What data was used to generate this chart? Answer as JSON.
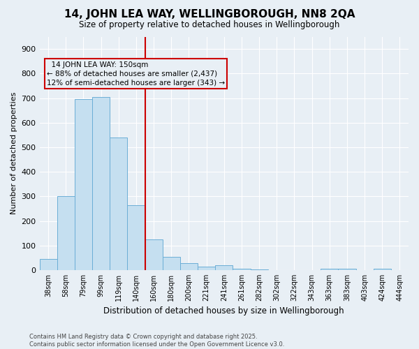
{
  "title": "14, JOHN LEA WAY, WELLINGBOROUGH, NN8 2QA",
  "subtitle": "Size of property relative to detached houses in Wellingborough",
  "xlabel": "Distribution of detached houses by size in Wellingborough",
  "ylabel": "Number of detached properties",
  "footer": "Contains HM Land Registry data © Crown copyright and database right 2025.\nContains public sector information licensed under the Open Government Licence v3.0.",
  "bar_color": "#C5DFF0",
  "bar_edge_color": "#6BAED6",
  "categories": [
    "38sqm",
    "58sqm",
    "79sqm",
    "99sqm",
    "119sqm",
    "140sqm",
    "160sqm",
    "180sqm",
    "200sqm",
    "221sqm",
    "241sqm",
    "261sqm",
    "282sqm",
    "302sqm",
    "322sqm",
    "343sqm",
    "363sqm",
    "383sqm",
    "403sqm",
    "424sqm",
    "444sqm"
  ],
  "values": [
    45,
    300,
    695,
    705,
    540,
    265,
    125,
    55,
    28,
    13,
    20,
    5,
    3,
    0,
    0,
    0,
    5,
    5,
    0,
    5,
    0
  ],
  "vline_color": "#CC0000",
  "annotation_text": "  14 JOHN LEA WAY: 150sqm\n← 88% of detached houses are smaller (2,437)\n12% of semi-detached houses are larger (343) →",
  "ylim": [
    0,
    950
  ],
  "yticks": [
    0,
    100,
    200,
    300,
    400,
    500,
    600,
    700,
    800,
    900
  ],
  "bg_color": "#E8EFF5",
  "grid_color": "#FFFFFF"
}
